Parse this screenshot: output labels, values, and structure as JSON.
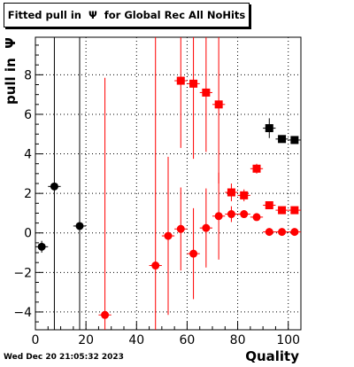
{
  "title": "Fitted pull in  Ψ  for Global Rec All NoHits",
  "timestamp": "Wed Dec 20 21:05:32 2023",
  "chart_data": {
    "type": "scatter",
    "title": "Fitted pull in  Ψ  for Global Rec All NoHits",
    "xlabel": "Quality",
    "ylabel": "pull in  Ψ",
    "xlim": [
      0,
      105
    ],
    "ylim": [
      -4.9,
      9.9
    ],
    "xticks": [
      0,
      20,
      40,
      60,
      80,
      100
    ],
    "yticks": [
      -4,
      -2,
      0,
      2,
      4,
      6,
      8
    ],
    "grid": true,
    "series": [
      {
        "marker": "square",
        "color": "#000000",
        "points": [
          {
            "x": 92.5,
            "y": 5.3,
            "yerr": 0.5
          },
          {
            "x": 97.5,
            "y": 4.75,
            "yerr": 0.15
          },
          {
            "x": 102.5,
            "y": 4.7,
            "yerr": 0.15
          }
        ]
      },
      {
        "marker": "circle",
        "color": "#000000",
        "points": [
          {
            "x": 2.5,
            "y": -0.7,
            "yerr": 0.3
          },
          {
            "x": 7.5,
            "y": 2.35,
            "yerr": 12
          },
          {
            "x": 17.5,
            "y": 0.35,
            "yerr": 12
          }
        ]
      },
      {
        "marker": "square",
        "color": "#ff0000",
        "points": [
          {
            "x": 57.5,
            "y": 7.7,
            "yerr": 3.4
          },
          {
            "x": 62.5,
            "y": 7.55,
            "yerr": 3.8
          },
          {
            "x": 67.5,
            "y": 7.1,
            "yerr": 3.0
          },
          {
            "x": 72.5,
            "y": 6.5,
            "yerr": 4.0
          },
          {
            "x": 77.5,
            "y": 2.05,
            "yerr": 0.45
          },
          {
            "x": 82.5,
            "y": 1.9,
            "yerr": 0.3
          },
          {
            "x": 87.5,
            "y": 3.25,
            "yerr": 0.25
          },
          {
            "x": 92.5,
            "y": 1.4,
            "yerr": 0.1
          },
          {
            "x": 97.5,
            "y": 1.15,
            "yerr": 0.1
          },
          {
            "x": 102.5,
            "y": 1.15,
            "yerr": 0.1
          }
        ]
      },
      {
        "marker": "circle",
        "color": "#ff0000",
        "points": [
          {
            "x": 27.5,
            "y": -4.15,
            "yerr": 12
          },
          {
            "x": 47.5,
            "y": -1.65,
            "yerr": 12
          },
          {
            "x": 52.5,
            "y": -0.15,
            "yerr": 4.0
          },
          {
            "x": 57.5,
            "y": 0.2,
            "yerr": 2.1
          },
          {
            "x": 62.5,
            "y": -1.05,
            "yerr": 2.3
          },
          {
            "x": 67.5,
            "y": 0.25,
            "yerr": 2.0
          },
          {
            "x": 72.5,
            "y": 0.85,
            "yerr": 2.2
          },
          {
            "x": 77.5,
            "y": 0.95,
            "yerr": 0.4
          },
          {
            "x": 82.5,
            "y": 0.95,
            "yerr": 0.2
          },
          {
            "x": 87.5,
            "y": 0.8,
            "yerr": 0.15
          },
          {
            "x": 92.5,
            "y": 0.05,
            "yerr": 0.05
          },
          {
            "x": 97.5,
            "y": 0.05,
            "yerr": 0.05
          },
          {
            "x": 102.5,
            "y": 0.05,
            "yerr": 0.05
          }
        ]
      }
    ]
  }
}
